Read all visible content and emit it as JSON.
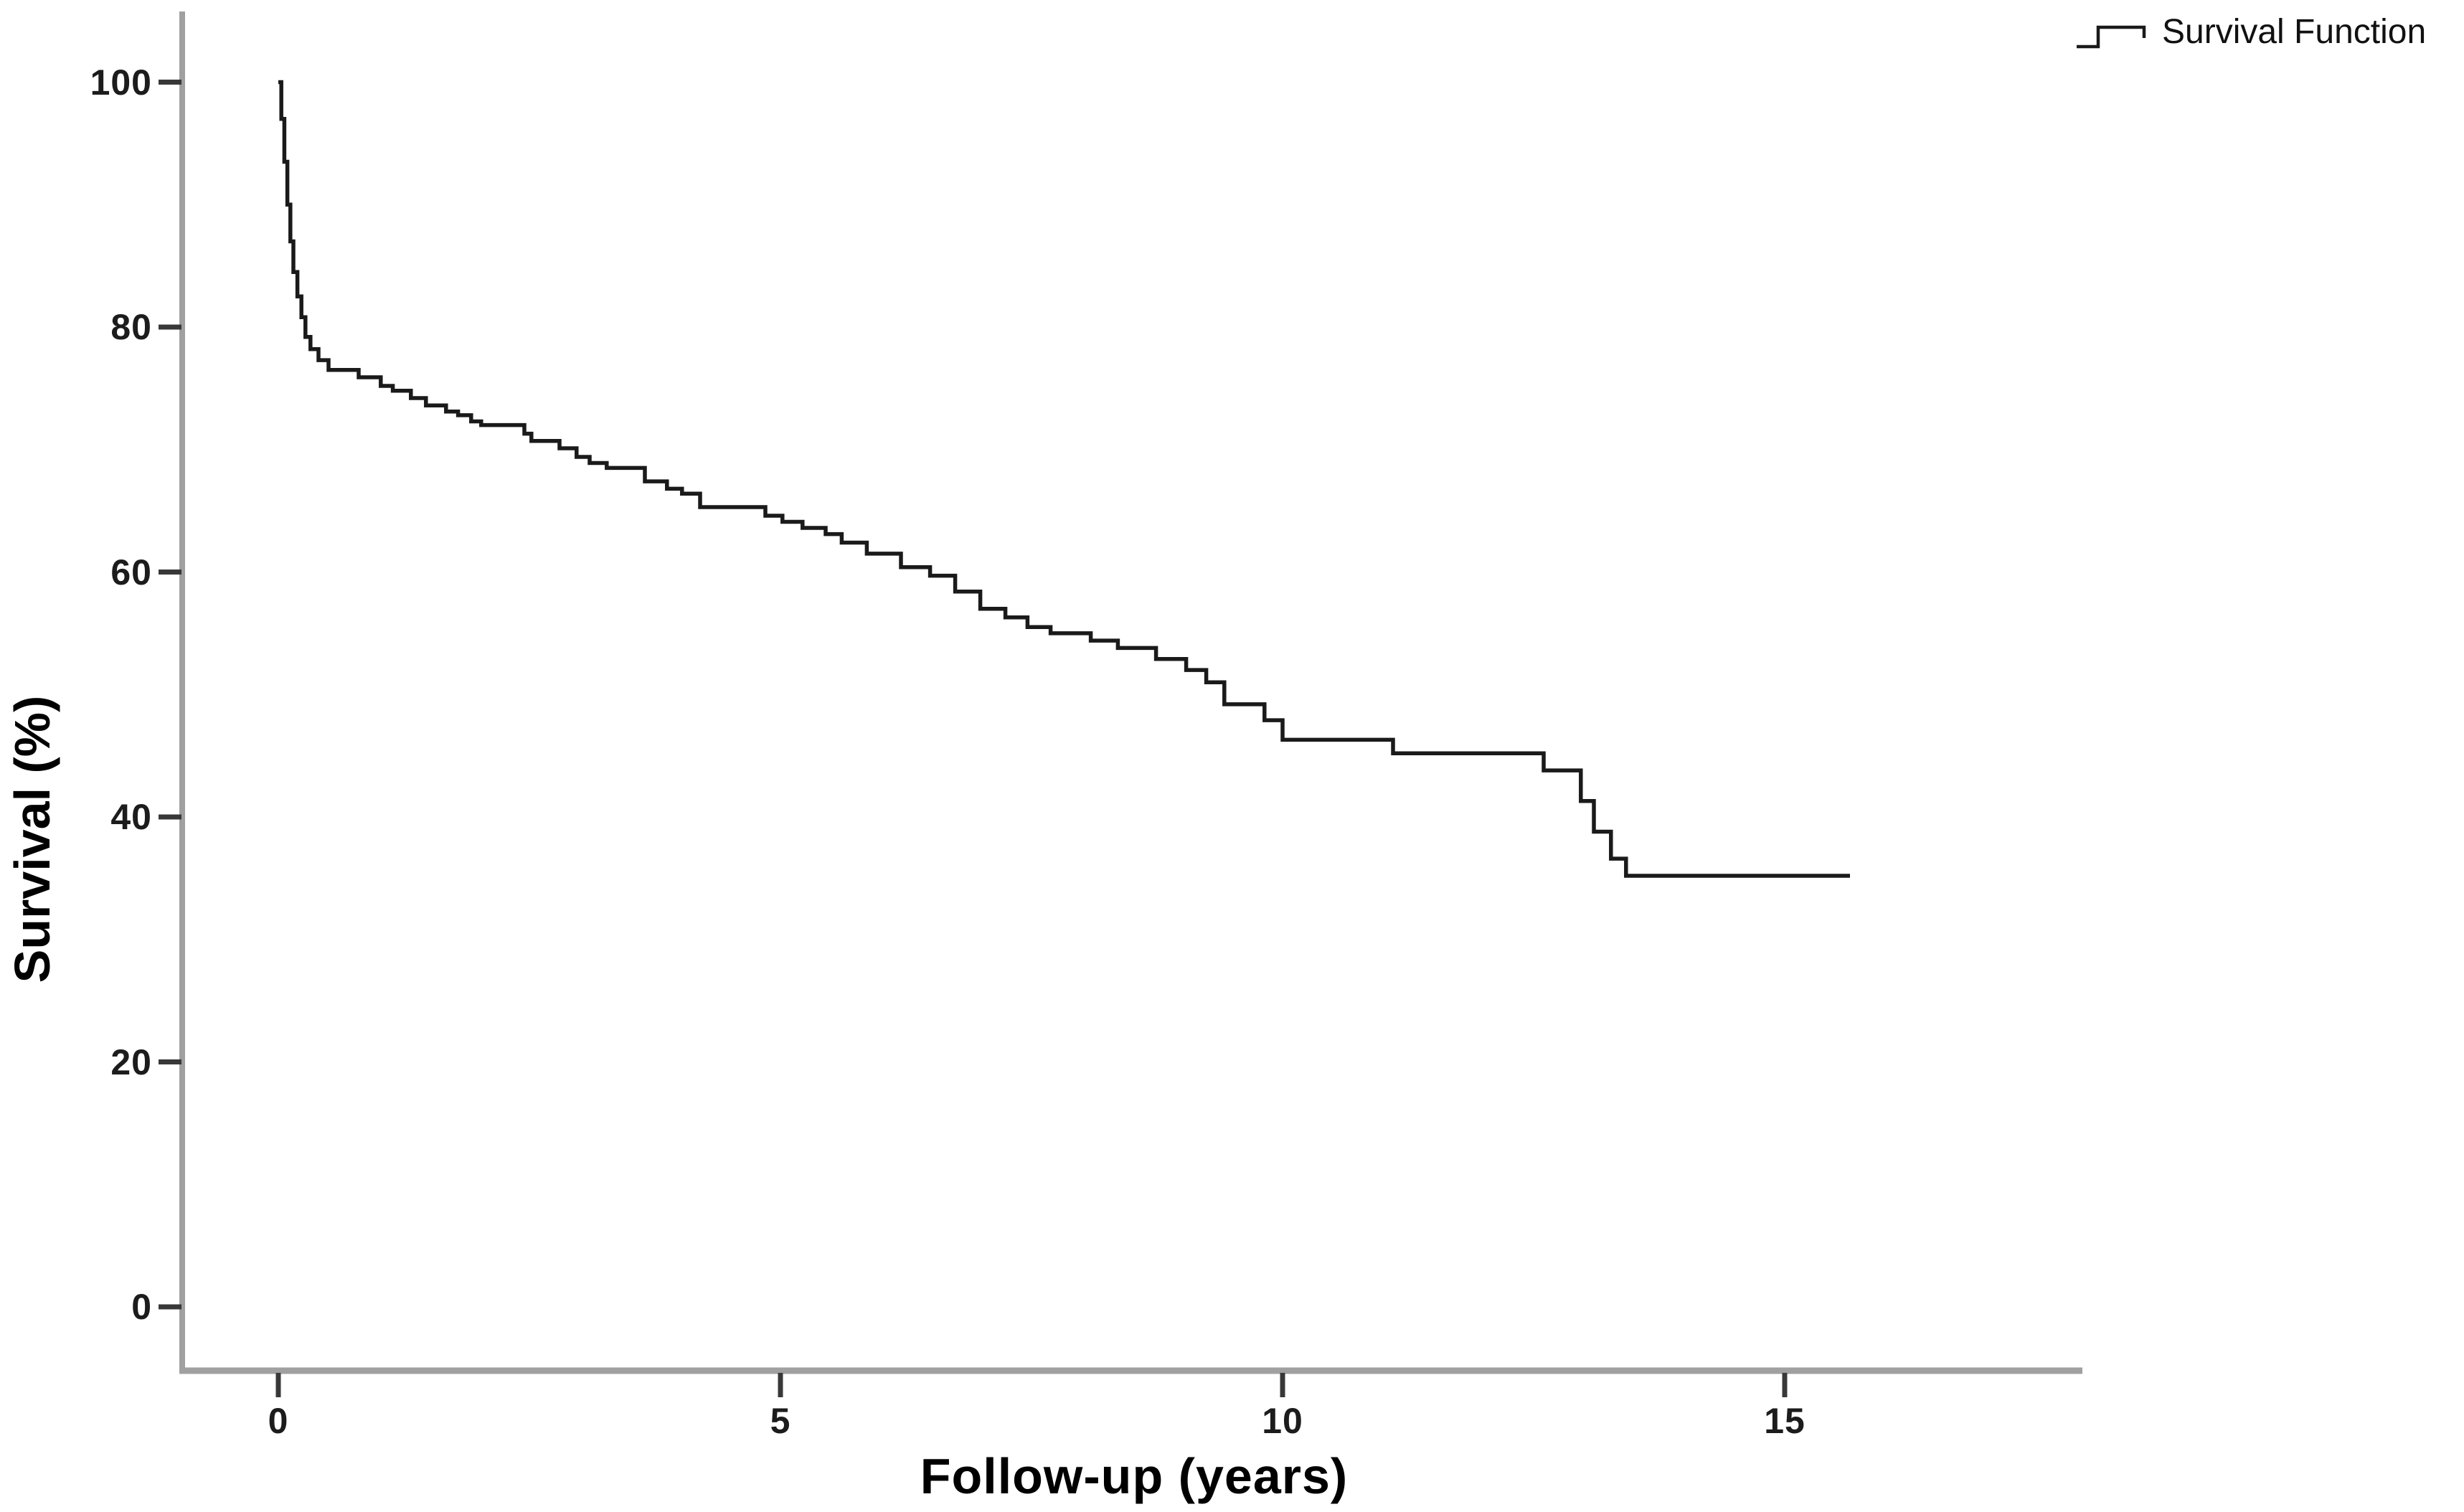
{
  "chart_data": {
    "type": "line",
    "subtype": "kaplan-meier-step",
    "title": "",
    "xlabel": "Follow-up (years)",
    "ylabel": "Survival (%)",
    "x_ticks": [
      0,
      5,
      10,
      15
    ],
    "y_ticks": [
      0,
      20,
      40,
      60,
      80,
      100
    ],
    "xlim": [
      0,
      18
    ],
    "ylim": [
      0,
      100
    ],
    "grid": false,
    "legend": {
      "label": "Survival Function",
      "position": "top-right",
      "icon": "step-line-icon"
    },
    "series": [
      {
        "name": "Survival Function",
        "step": "after",
        "color": "#1a1a1a",
        "points": [
          [
            0,
            100
          ],
          [
            0.03,
            97
          ],
          [
            0.06,
            93.5
          ],
          [
            0.09,
            90
          ],
          [
            0.12,
            87
          ],
          [
            0.15,
            84.5
          ],
          [
            0.19,
            82.5
          ],
          [
            0.23,
            80.8
          ],
          [
            0.27,
            79.2
          ],
          [
            0.32,
            78.2
          ],
          [
            0.4,
            77.3
          ],
          [
            0.5,
            76.5
          ],
          [
            0.8,
            75.9
          ],
          [
            1.02,
            75.2
          ],
          [
            1.14,
            74.8
          ],
          [
            1.32,
            74.2
          ],
          [
            1.47,
            73.6
          ],
          [
            1.67,
            73.1
          ],
          [
            1.79,
            72.8
          ],
          [
            1.92,
            72.3
          ],
          [
            2.02,
            72.0
          ],
          [
            2.45,
            71.3
          ],
          [
            2.52,
            70.7
          ],
          [
            2.8,
            70.1
          ],
          [
            2.97,
            69.4
          ],
          [
            3.1,
            68.9
          ],
          [
            3.27,
            68.5
          ],
          [
            3.65,
            67.4
          ],
          [
            3.87,
            66.8
          ],
          [
            4.02,
            66.4
          ],
          [
            4.2,
            65.3
          ],
          [
            4.85,
            64.6
          ],
          [
            5.02,
            64.1
          ],
          [
            5.22,
            63.6
          ],
          [
            5.45,
            63.1
          ],
          [
            5.61,
            62.4
          ],
          [
            5.86,
            61.5
          ],
          [
            6.2,
            60.4
          ],
          [
            6.49,
            59.7
          ],
          [
            6.74,
            58.4
          ],
          [
            6.99,
            57.0
          ],
          [
            7.24,
            56.3
          ],
          [
            7.46,
            55.5
          ],
          [
            7.69,
            55.0
          ],
          [
            8.09,
            54.4
          ],
          [
            8.36,
            53.8
          ],
          [
            8.74,
            52.9
          ],
          [
            9.04,
            52.0
          ],
          [
            9.24,
            51.0
          ],
          [
            9.42,
            49.2
          ],
          [
            9.82,
            47.9
          ],
          [
            10.0,
            46.3
          ],
          [
            11.1,
            45.2
          ],
          [
            12.6,
            43.8
          ],
          [
            12.97,
            41.3
          ],
          [
            13.1,
            38.8
          ],
          [
            13.27,
            36.6
          ],
          [
            13.42,
            35.2
          ],
          [
            15.65,
            35.2
          ]
        ]
      }
    ],
    "colors": {
      "curve": "#1a1a1a",
      "axis_line": "#a0a0a0",
      "tick_mark": "#383838",
      "text": "#000000",
      "background": "#ffffff"
    }
  }
}
